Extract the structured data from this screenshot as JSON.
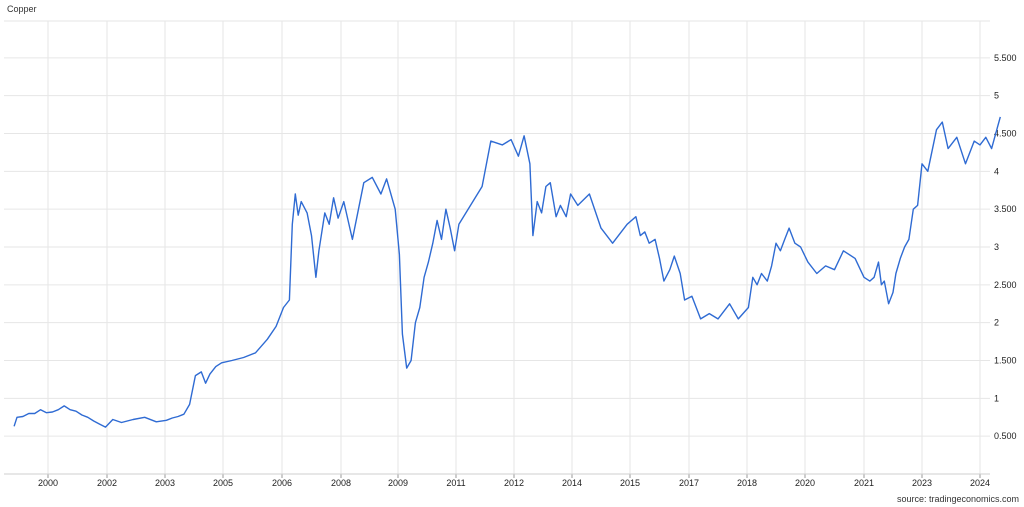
{
  "title": "Copper",
  "source": "source: tradingeconomics.com",
  "colors": {
    "line": "#2f6bd3",
    "grid": "#e6e6e6",
    "text": "#222222"
  },
  "chart_data": {
    "type": "line",
    "title": "Copper",
    "xlabel": "",
    "ylabel": "",
    "x_ticks": [
      "2000",
      "2002",
      "2003",
      "2005",
      "2006",
      "2008",
      "2009",
      "2011",
      "2012",
      "2014",
      "2015",
      "2017",
      "2018",
      "2020",
      "2021",
      "2023",
      "2024"
    ],
    "x_tick_years": [
      2000,
      2002,
      2003,
      2005,
      2006,
      2008,
      2009,
      2011,
      2012,
      2014,
      2015,
      2017,
      2018,
      2020,
      2021,
      2023,
      2024
    ],
    "y_ticks": [
      "0.500",
      "1",
      "1.500",
      "2",
      "2.500",
      "3",
      "3.500",
      "4",
      "4.500",
      "5",
      "5.500"
    ],
    "y_tick_values": [
      0.5,
      1,
      1.5,
      2,
      2.5,
      3,
      3.5,
      4,
      4.5,
      5,
      5.5
    ],
    "ylim": [
      0,
      6
    ],
    "xlim": [
      1998.8,
      2024.35
    ],
    "grid": true,
    "legend": "none",
    "series": [
      {
        "points": [
          [
            1998.85,
            0.63
          ],
          [
            1998.95,
            0.75
          ],
          [
            1999.15,
            0.76
          ],
          [
            1999.35,
            0.8
          ],
          [
            1999.55,
            0.8
          ],
          [
            1999.75,
            0.85
          ],
          [
            1999.95,
            0.81
          ],
          [
            2000.15,
            0.82
          ],
          [
            2000.35,
            0.85
          ],
          [
            2000.55,
            0.9
          ],
          [
            2000.75,
            0.85
          ],
          [
            2000.95,
            0.83
          ],
          [
            2001.15,
            0.78
          ],
          [
            2001.35,
            0.75
          ],
          [
            2001.55,
            0.7
          ],
          [
            2001.75,
            0.66
          ],
          [
            2001.95,
            0.62
          ],
          [
            2002.1,
            0.72
          ],
          [
            2002.25,
            0.68
          ],
          [
            2002.45,
            0.72
          ],
          [
            2002.65,
            0.75
          ],
          [
            2002.85,
            0.69
          ],
          [
            2003.05,
            0.71
          ],
          [
            2003.25,
            0.74
          ],
          [
            2003.45,
            0.76
          ],
          [
            2003.65,
            0.79
          ],
          [
            2003.85,
            0.92
          ],
          [
            2004.05,
            1.3
          ],
          [
            2004.25,
            1.35
          ],
          [
            2004.4,
            1.2
          ],
          [
            2004.55,
            1.32
          ],
          [
            2004.75,
            1.42
          ],
          [
            2004.95,
            1.47
          ],
          [
            2005.15,
            1.5
          ],
          [
            2005.35,
            1.54
          ],
          [
            2005.55,
            1.6
          ],
          [
            2005.75,
            1.78
          ],
          [
            2005.9,
            1.95
          ],
          [
            2006.05,
            2.2
          ],
          [
            2006.25,
            2.3
          ],
          [
            2006.35,
            3.3
          ],
          [
            2006.45,
            3.7
          ],
          [
            2006.55,
            3.42
          ],
          [
            2006.65,
            3.6
          ],
          [
            2006.85,
            3.45
          ],
          [
            2007.0,
            3.15
          ],
          [
            2007.15,
            2.6
          ],
          [
            2007.25,
            2.95
          ],
          [
            2007.45,
            3.45
          ],
          [
            2007.6,
            3.3
          ],
          [
            2007.75,
            3.65
          ],
          [
            2007.9,
            3.38
          ],
          [
            2008.05,
            3.6
          ],
          [
            2008.2,
            3.1
          ],
          [
            2008.4,
            3.85
          ],
          [
            2008.55,
            3.92
          ],
          [
            2008.7,
            3.7
          ],
          [
            2008.8,
            3.9
          ],
          [
            2008.95,
            3.5
          ],
          [
            2009.05,
            2.9
          ],
          [
            2009.15,
            1.85
          ],
          [
            2009.3,
            1.4
          ],
          [
            2009.45,
            1.5
          ],
          [
            2009.6,
            2.0
          ],
          [
            2009.75,
            2.2
          ],
          [
            2009.9,
            2.6
          ],
          [
            2010.05,
            2.8
          ],
          [
            2010.2,
            3.05
          ],
          [
            2010.35,
            3.35
          ],
          [
            2010.5,
            3.1
          ],
          [
            2010.65,
            3.5
          ],
          [
            2010.8,
            3.25
          ],
          [
            2010.95,
            2.95
          ],
          [
            2011.05,
            3.3
          ],
          [
            2011.25,
            3.55
          ],
          [
            2011.45,
            3.8
          ],
          [
            2011.6,
            4.4
          ],
          [
            2011.8,
            4.35
          ],
          [
            2011.95,
            4.42
          ],
          [
            2012.15,
            4.2
          ],
          [
            2012.35,
            4.47
          ],
          [
            2012.55,
            4.1
          ],
          [
            2012.65,
            3.15
          ],
          [
            2012.8,
            3.6
          ],
          [
            2012.95,
            3.45
          ],
          [
            2013.1,
            3.8
          ],
          [
            2013.25,
            3.85
          ],
          [
            2013.45,
            3.4
          ],
          [
            2013.6,
            3.55
          ],
          [
            2013.8,
            3.4
          ],
          [
            2013.95,
            3.7
          ],
          [
            2014.1,
            3.55
          ],
          [
            2014.3,
            3.7
          ],
          [
            2014.5,
            3.25
          ],
          [
            2014.7,
            3.05
          ],
          [
            2014.95,
            3.3
          ],
          [
            2015.2,
            3.4
          ],
          [
            2015.35,
            3.15
          ],
          [
            2015.5,
            3.2
          ],
          [
            2015.65,
            3.05
          ],
          [
            2015.85,
            3.1
          ],
          [
            2016.0,
            2.85
          ],
          [
            2016.15,
            2.55
          ],
          [
            2016.35,
            2.7
          ],
          [
            2016.5,
            2.88
          ],
          [
            2016.7,
            2.65
          ],
          [
            2016.85,
            2.3
          ],
          [
            2017.05,
            2.35
          ],
          [
            2017.2,
            2.05
          ],
          [
            2017.35,
            2.12
          ],
          [
            2017.5,
            2.05
          ],
          [
            2017.7,
            2.25
          ],
          [
            2017.85,
            2.05
          ],
          [
            2018.05,
            2.2
          ],
          [
            2018.2,
            2.6
          ],
          [
            2018.35,
            2.5
          ],
          [
            2018.5,
            2.65
          ],
          [
            2018.7,
            2.55
          ],
          [
            2018.85,
            2.75
          ],
          [
            2019.0,
            3.05
          ],
          [
            2019.15,
            2.95
          ],
          [
            2019.3,
            3.1
          ],
          [
            2019.45,
            3.25
          ],
          [
            2019.65,
            3.05
          ],
          [
            2019.85,
            3.0
          ],
          [
            2020.05,
            2.8
          ],
          [
            2020.2,
            2.65
          ],
          [
            2020.35,
            2.75
          ],
          [
            2020.5,
            2.7
          ],
          [
            2020.65,
            2.95
          ],
          [
            2020.85,
            2.85
          ],
          [
            2021.0,
            2.6
          ],
          [
            2021.2,
            2.55
          ],
          [
            2021.35,
            2.6
          ],
          [
            2021.5,
            2.8
          ],
          [
            2021.6,
            2.5
          ],
          [
            2021.7,
            2.55
          ],
          [
            2021.85,
            2.25
          ],
          [
            2022.0,
            2.4
          ],
          [
            2022.1,
            2.65
          ],
          [
            2022.25,
            2.85
          ],
          [
            2022.4,
            3.0
          ],
          [
            2022.55,
            3.1
          ],
          [
            2022.7,
            3.5
          ],
          [
            2022.85,
            3.55
          ],
          [
            2023.0,
            4.1
          ],
          [
            2023.1,
            4.0
          ],
          [
            2023.25,
            4.55
          ],
          [
            2023.35,
            4.65
          ],
          [
            2023.45,
            4.3
          ],
          [
            2023.6,
            4.45
          ],
          [
            2023.75,
            4.1
          ],
          [
            2023.9,
            4.4
          ],
          [
            2024.0,
            4.35
          ],
          [
            2024.1,
            4.45
          ],
          [
            2024.2,
            4.3
          ],
          [
            2024.35,
            4.72
          ]
        ]
      }
    ]
  }
}
